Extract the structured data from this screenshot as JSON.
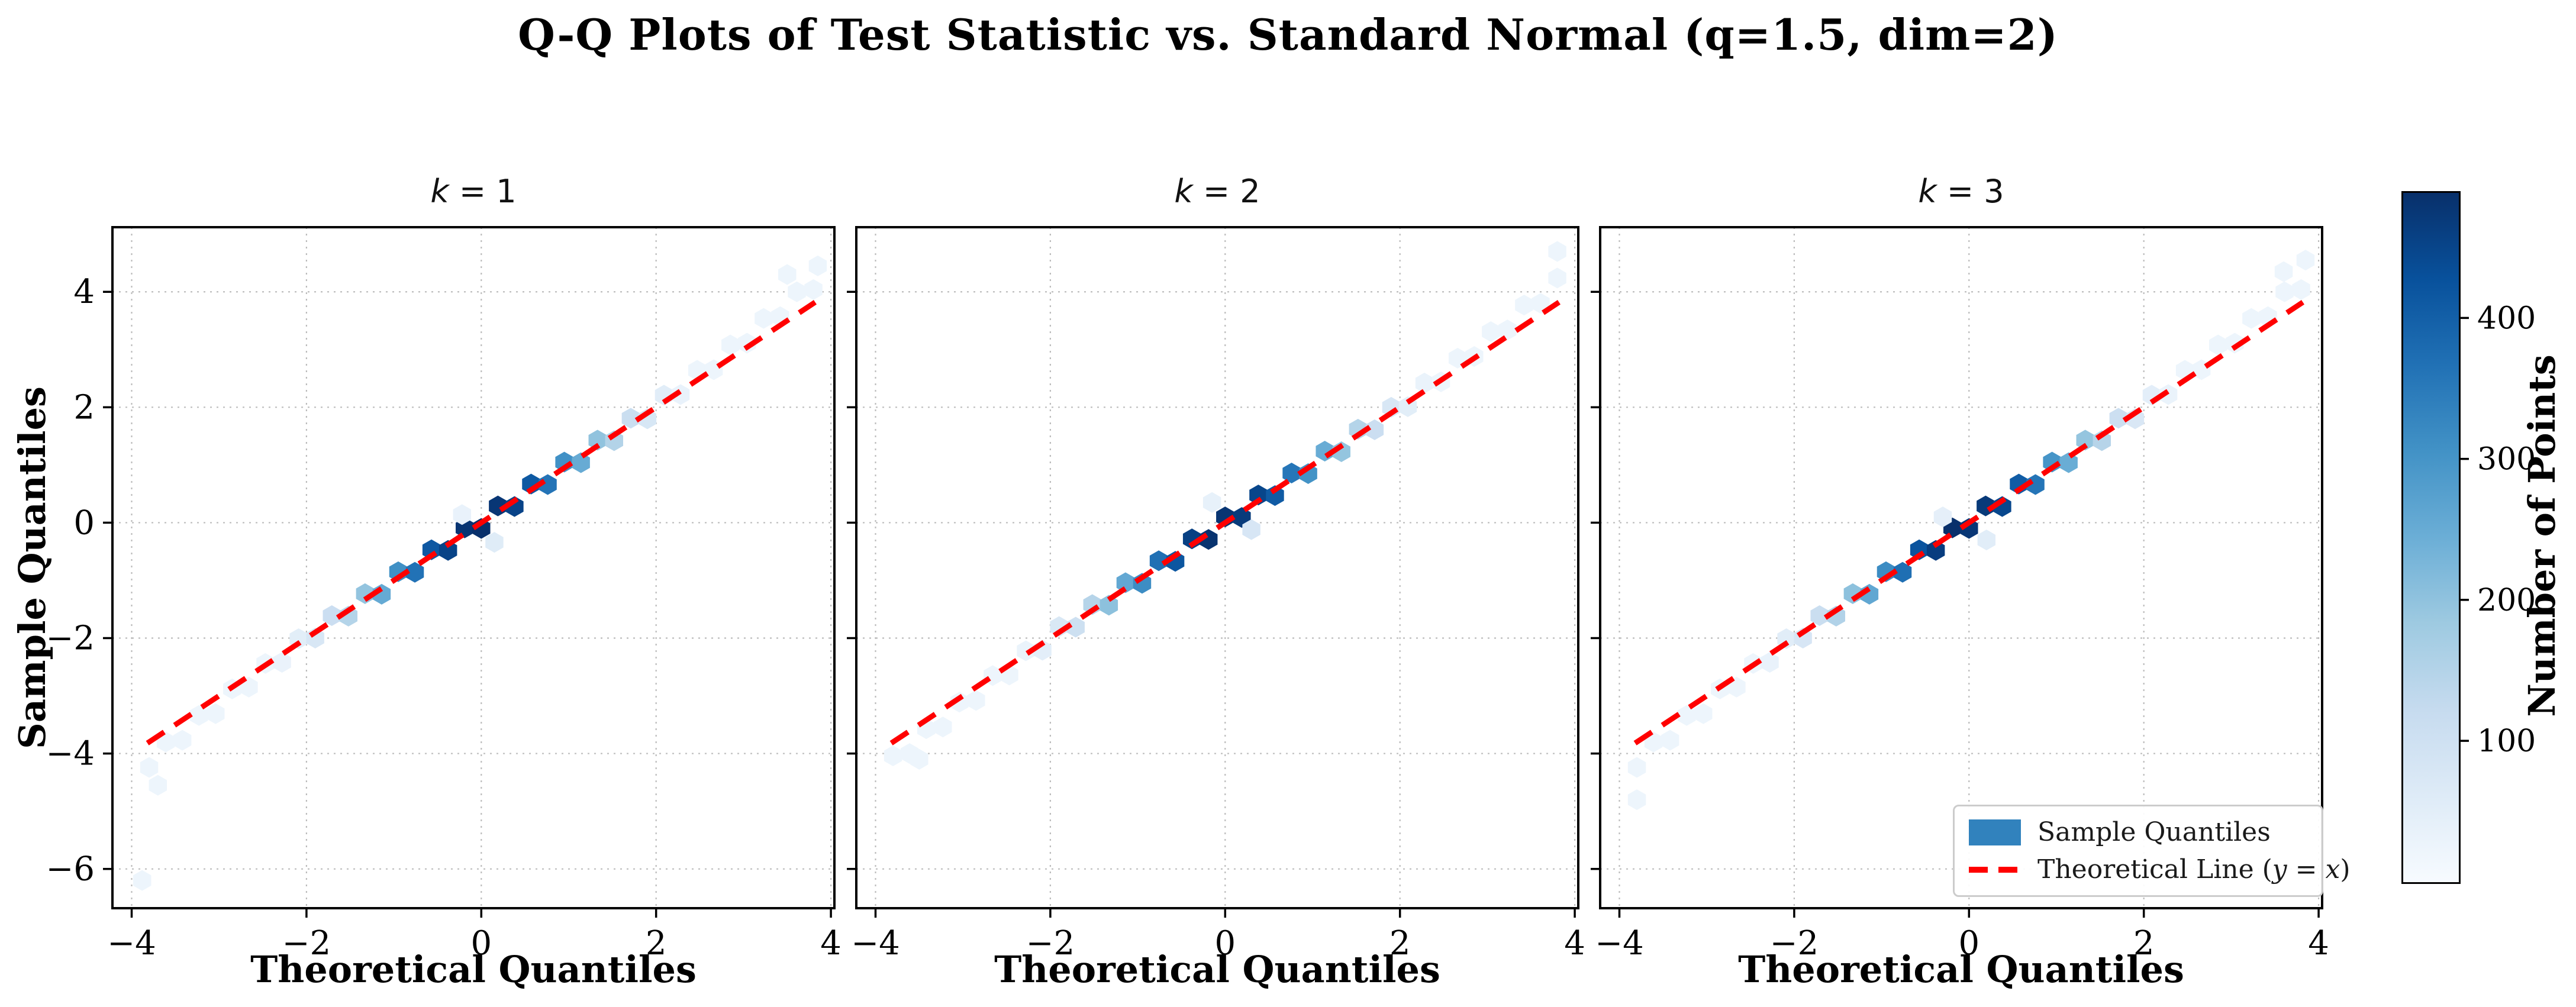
{
  "figure": {
    "background": "#ffffff",
    "text_color": "#000000"
  },
  "chart_data": {
    "type": "scatter",
    "variant": "hexbin-qq",
    "title": "Q-Q Plots of Test Statistic vs. Standard Normal (q=1.5, dim=2)",
    "xlabel": "Theoretical Quantiles",
    "ylabel": "Sample Quantiles",
    "xticks": [
      -4,
      -2,
      0,
      2,
      4
    ],
    "yticks": [
      4,
      2,
      0,
      -2,
      -4,
      -6
    ],
    "xlim": [
      -4.22,
      4.04
    ],
    "ylim": [
      -6.68,
      5.12
    ],
    "grid": true,
    "grid_style": "dotted",
    "theoretical_line": {
      "label": "Theoretical Line (y = x)",
      "color": "#ff0000",
      "style": "dashed",
      "x": [
        -3.82,
        3.82
      ],
      "y": [
        -3.82,
        3.82
      ]
    },
    "colormap_name": "Blues",
    "colormap_stops": [
      [
        0,
        "#f7fbff"
      ],
      [
        0.125,
        "#deebf7"
      ],
      [
        0.25,
        "#c6dbef"
      ],
      [
        0.375,
        "#9ecae1"
      ],
      [
        0.5,
        "#6baed6"
      ],
      [
        0.625,
        "#4292c6"
      ],
      [
        0.75,
        "#2171b5"
      ],
      [
        0.875,
        "#08519c"
      ],
      [
        1,
        "#08306b"
      ]
    ],
    "colorbar": {
      "label": "Number of Points",
      "ticks": [
        100,
        200,
        300,
        400
      ],
      "vmin": 1,
      "vmax": 490
    },
    "subplots": [
      {
        "title": "k = 1",
        "var": "k",
        "value": "1",
        "points": [
          [
            -3.8,
            -4.24,
            1
          ],
          [
            -3.61,
            -3.8,
            1
          ],
          [
            -3.42,
            -3.77,
            1
          ],
          [
            -3.23,
            -3.34,
            2
          ],
          [
            -3.04,
            -3.31,
            4
          ],
          [
            -2.85,
            -2.88,
            7
          ],
          [
            -2.66,
            -2.85,
            12
          ],
          [
            -2.47,
            -2.44,
            21
          ],
          [
            -2.28,
            -2.42,
            34
          ],
          [
            -2.09,
            -2.01,
            52
          ],
          [
            -1.9,
            -2.0,
            78
          ],
          [
            -1.71,
            -1.61,
            110
          ],
          [
            -1.52,
            -1.62,
            150
          ],
          [
            -1.33,
            -1.23,
            198
          ],
          [
            -1.14,
            -1.24,
            255
          ],
          [
            -0.95,
            -0.85,
            310
          ],
          [
            -0.76,
            -0.86,
            365
          ],
          [
            -0.57,
            -0.47,
            415
          ],
          [
            -0.38,
            -0.48,
            455
          ],
          [
            -0.19,
            -0.09,
            480
          ],
          [
            0.0,
            -0.1,
            490
          ],
          [
            0.19,
            0.29,
            478
          ],
          [
            0.38,
            0.28,
            454
          ],
          [
            0.57,
            0.67,
            413
          ],
          [
            0.76,
            0.66,
            362
          ],
          [
            0.95,
            1.05,
            308
          ],
          [
            1.14,
            1.04,
            252
          ],
          [
            1.33,
            1.43,
            200
          ],
          [
            1.52,
            1.42,
            152
          ],
          [
            1.71,
            1.81,
            112
          ],
          [
            1.9,
            1.8,
            79
          ],
          [
            2.09,
            2.21,
            54
          ],
          [
            2.28,
            2.22,
            35
          ],
          [
            2.47,
            2.64,
            22
          ],
          [
            2.66,
            2.65,
            13
          ],
          [
            2.85,
            3.08,
            8
          ],
          [
            3.04,
            3.11,
            5
          ],
          [
            3.23,
            3.54,
            3
          ],
          [
            3.42,
            3.57,
            1
          ],
          [
            3.61,
            4.0,
            1
          ],
          [
            3.8,
            4.04,
            1
          ],
          [
            -0.22,
            0.14,
            35
          ],
          [
            0.15,
            -0.34,
            60
          ],
          [
            -3.7,
            -4.55,
            1
          ],
          [
            -3.88,
            -6.2,
            1
          ],
          [
            3.5,
            4.3,
            1
          ],
          [
            3.85,
            4.45,
            1
          ]
        ]
      },
      {
        "title": "k = 2",
        "var": "k",
        "value": "2",
        "points": [
          [
            -3.8,
            -4.04,
            1
          ],
          [
            -3.61,
            -4.0,
            1
          ],
          [
            -3.42,
            -3.57,
            1
          ],
          [
            -3.23,
            -3.54,
            2
          ],
          [
            -3.04,
            -3.11,
            3
          ],
          [
            -2.85,
            -3.08,
            6
          ],
          [
            -2.66,
            -2.65,
            11
          ],
          [
            -2.47,
            -2.64,
            19
          ],
          [
            -2.28,
            -2.22,
            32
          ],
          [
            -2.09,
            -2.21,
            50
          ],
          [
            -1.9,
            -1.8,
            75
          ],
          [
            -1.71,
            -1.81,
            105
          ],
          [
            -1.52,
            -1.42,
            148
          ],
          [
            -1.33,
            -1.43,
            205
          ],
          [
            -1.14,
            -1.04,
            258
          ],
          [
            -0.95,
            -1.05,
            315
          ],
          [
            -0.76,
            -0.66,
            370
          ],
          [
            -0.57,
            -0.67,
            420
          ],
          [
            -0.38,
            -0.28,
            460
          ],
          [
            -0.19,
            -0.29,
            485
          ],
          [
            0.0,
            0.1,
            480
          ],
          [
            0.19,
            0.09,
            470
          ],
          [
            0.38,
            0.48,
            450
          ],
          [
            0.57,
            0.47,
            410
          ],
          [
            0.76,
            0.86,
            358
          ],
          [
            0.95,
            0.85,
            305
          ],
          [
            1.14,
            1.24,
            250
          ],
          [
            1.33,
            1.23,
            196
          ],
          [
            1.52,
            1.62,
            150
          ],
          [
            1.71,
            1.61,
            110
          ],
          [
            1.9,
            2.0,
            77
          ],
          [
            2.09,
            2.01,
            52
          ],
          [
            2.28,
            2.42,
            33
          ],
          [
            2.47,
            2.44,
            21
          ],
          [
            2.66,
            2.85,
            12
          ],
          [
            2.85,
            2.88,
            7
          ],
          [
            3.04,
            3.31,
            4
          ],
          [
            3.23,
            3.34,
            2
          ],
          [
            3.42,
            3.77,
            1
          ],
          [
            3.61,
            3.8,
            1
          ],
          [
            3.8,
            4.24,
            1
          ],
          [
            -0.15,
            0.35,
            40
          ],
          [
            0.3,
            -0.12,
            80
          ],
          [
            -3.5,
            -4.1,
            1
          ],
          [
            3.8,
            4.7,
            1
          ]
        ]
      },
      {
        "title": "k = 3",
        "var": "k",
        "value": "3",
        "points": [
          [
            -3.8,
            -4.24,
            1
          ],
          [
            -3.61,
            -3.8,
            1
          ],
          [
            -3.42,
            -3.77,
            2
          ],
          [
            -3.23,
            -3.34,
            2
          ],
          [
            -3.04,
            -3.31,
            4
          ],
          [
            -2.85,
            -2.88,
            8
          ],
          [
            -2.66,
            -2.85,
            13
          ],
          [
            -2.47,
            -2.44,
            22
          ],
          [
            -2.28,
            -2.42,
            35
          ],
          [
            -2.09,
            -2.01,
            54
          ],
          [
            -1.9,
            -2.0,
            80
          ],
          [
            -1.71,
            -1.61,
            112
          ],
          [
            -1.52,
            -1.62,
            155
          ],
          [
            -1.33,
            -1.23,
            205
          ],
          [
            -1.14,
            -1.24,
            260
          ],
          [
            -0.95,
            -0.85,
            318
          ],
          [
            -0.76,
            -0.86,
            372
          ],
          [
            -0.57,
            -0.47,
            425
          ],
          [
            -0.38,
            -0.48,
            465
          ],
          [
            -0.19,
            -0.09,
            490
          ],
          [
            0.0,
            -0.1,
            478
          ],
          [
            0.19,
            0.29,
            472
          ],
          [
            0.38,
            0.28,
            448
          ],
          [
            0.57,
            0.67,
            408
          ],
          [
            0.76,
            0.66,
            360
          ],
          [
            0.95,
            1.05,
            300
          ],
          [
            1.14,
            1.04,
            248
          ],
          [
            1.33,
            1.43,
            195
          ],
          [
            1.52,
            1.42,
            148
          ],
          [
            1.71,
            1.81,
            108
          ],
          [
            1.9,
            1.8,
            76
          ],
          [
            2.09,
            2.21,
            50
          ],
          [
            2.28,
            2.22,
            32
          ],
          [
            2.47,
            2.64,
            20
          ],
          [
            2.66,
            2.65,
            12
          ],
          [
            2.85,
            3.08,
            7
          ],
          [
            3.04,
            3.11,
            4
          ],
          [
            3.23,
            3.54,
            2
          ],
          [
            3.42,
            3.57,
            1
          ],
          [
            3.61,
            4.0,
            1
          ],
          [
            3.8,
            4.04,
            1
          ],
          [
            -0.3,
            0.1,
            45
          ],
          [
            0.2,
            -0.3,
            55
          ],
          [
            -3.8,
            -4.8,
            1
          ],
          [
            3.6,
            4.35,
            1
          ],
          [
            3.85,
            4.55,
            1
          ]
        ]
      }
    ],
    "legend_position": "lower right of k=3 subplot"
  },
  "legend": {
    "items": [
      {
        "label": "Sample Quantiles",
        "swatch": "patch",
        "color": "#3182bd"
      },
      {
        "label": "Theoretical Line (y = x)",
        "label_prefix": "Theoretical Line (",
        "label_math": "y = x",
        "label_suffix": ")",
        "swatch": "dashed-line",
        "color": "#ff0000"
      }
    ]
  }
}
